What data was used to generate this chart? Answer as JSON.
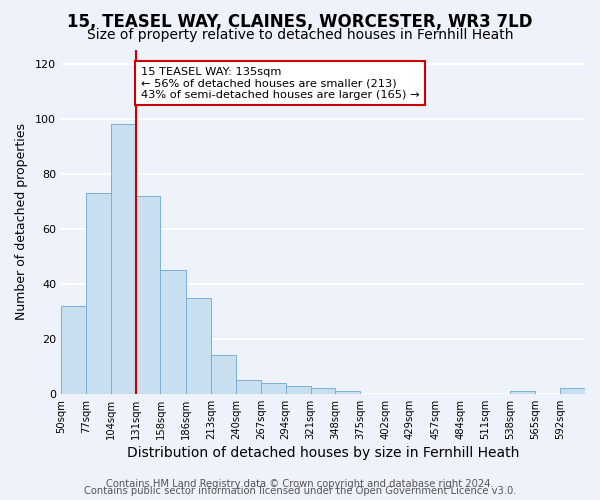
{
  "title": "15, TEASEL WAY, CLAINES, WORCESTER, WR3 7LD",
  "subtitle": "Size of property relative to detached houses in Fernhill Heath",
  "xlabel": "Distribution of detached houses by size in Fernhill Heath",
  "ylabel": "Number of detached properties",
  "bar_color": "#c8dff0",
  "bar_edge_color": "#7ab0d4",
  "vline_x": 131,
  "vline_color": "#cc0000",
  "annotation_title": "15 TEASEL WAY: 135sqm",
  "annotation_line1": "← 56% of detached houses are smaller (213)",
  "annotation_line2": "43% of semi-detached houses are larger (165) →",
  "annotation_box_color": "#ffffff",
  "annotation_box_edge": "#cc0000",
  "bin_edges": [
    50,
    77,
    104,
    131,
    158,
    186,
    213,
    240,
    267,
    294,
    321,
    348,
    375,
    402,
    429,
    457,
    484,
    511,
    538,
    565,
    592,
    619
  ],
  "bin_heights": [
    32,
    73,
    98,
    72,
    45,
    35,
    14,
    5,
    4,
    3,
    2,
    1,
    0,
    0,
    0,
    0,
    0,
    0,
    1,
    0,
    2
  ],
  "xlim": [
    50,
    619
  ],
  "ylim": [
    0,
    125
  ],
  "yticks": [
    0,
    20,
    40,
    60,
    80,
    100,
    120
  ],
  "xtick_positions": [
    50,
    77,
    104,
    131,
    158,
    186,
    213,
    240,
    267,
    294,
    321,
    348,
    375,
    402,
    429,
    457,
    484,
    511,
    538,
    565,
    592
  ],
  "xtick_labels": [
    "50sqm",
    "77sqm",
    "104sqm",
    "131sqm",
    "158sqm",
    "186sqm",
    "213sqm",
    "240sqm",
    "267sqm",
    "294sqm",
    "321sqm",
    "348sqm",
    "375sqm",
    "402sqm",
    "429sqm",
    "457sqm",
    "484sqm",
    "511sqm",
    "538sqm",
    "565sqm",
    "592sqm"
  ],
  "footer_line1": "Contains HM Land Registry data © Crown copyright and database right 2024.",
  "footer_line2": "Contains public sector information licensed under the Open Government Licence v3.0.",
  "background_color": "#eef2fb",
  "plot_bg_color": "#eef2fb",
  "grid_color": "#ffffff",
  "title_fontsize": 12,
  "subtitle_fontsize": 10,
  "xlabel_fontsize": 10,
  "ylabel_fontsize": 9,
  "footer_fontsize": 7.2
}
